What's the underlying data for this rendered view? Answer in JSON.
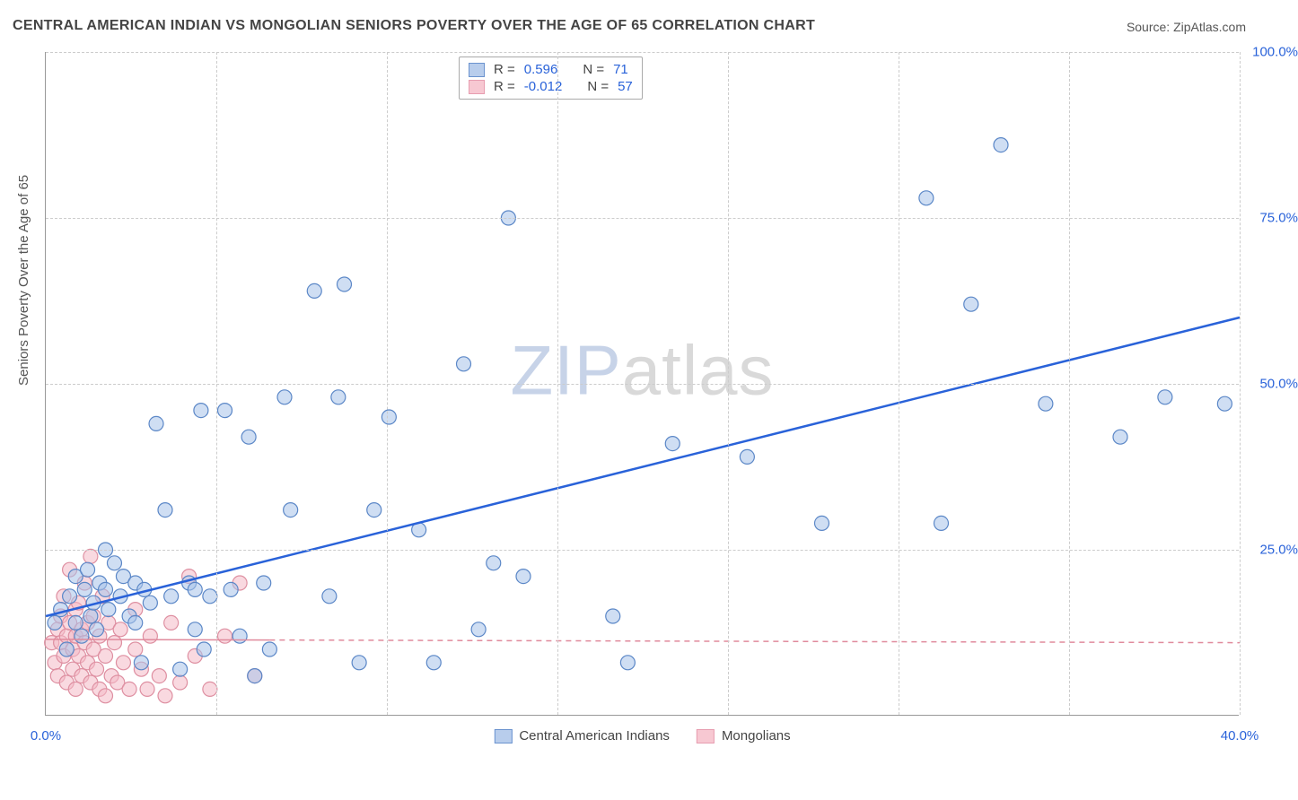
{
  "title": "CENTRAL AMERICAN INDIAN VS MONGOLIAN SENIORS POVERTY OVER THE AGE OF 65 CORRELATION CHART",
  "source_label": "Source: ",
  "source_name": "ZipAtlas.com",
  "watermark": {
    "a": "ZIP",
    "b": "atlas"
  },
  "chart": {
    "type": "scatter",
    "xlim": [
      0,
      40
    ],
    "ylim": [
      0,
      100
    ],
    "xtick_labels": [
      "0.0%",
      "40.0%"
    ],
    "xtick_positions": [
      0,
      40
    ],
    "xgrid_positions": [
      0,
      5.71,
      11.43,
      17.14,
      22.86,
      28.57,
      34.29,
      40
    ],
    "ytick_labels": [
      "25.0%",
      "50.0%",
      "75.0%",
      "100.0%"
    ],
    "ytick_positions": [
      25,
      50,
      75,
      100
    ],
    "ylabel": "Seniors Poverty Over the Age of 65",
    "background_color": "#ffffff",
    "grid_color": "#cccccc",
    "axis_color": "#999999",
    "tick_label_color": "#2962d9",
    "marker_radius": 8,
    "marker_opacity": 0.55,
    "series": [
      {
        "name": "Central American Indians",
        "color_fill": "#a7c3ea",
        "color_stroke": "#5b87c7",
        "swatch_fill": "#b8cdec",
        "swatch_stroke": "#6b93cf",
        "R": "0.596",
        "N": "71",
        "trend": {
          "x1": 0,
          "y1": 15,
          "x2": 40,
          "y2": 60,
          "color": "#2962d9",
          "width": 2.5,
          "dash": ""
        },
        "points": [
          [
            0.3,
            14
          ],
          [
            0.5,
            16
          ],
          [
            0.7,
            10
          ],
          [
            0.8,
            18
          ],
          [
            1.0,
            21
          ],
          [
            1.0,
            14
          ],
          [
            1.2,
            12
          ],
          [
            1.3,
            19
          ],
          [
            1.4,
            22
          ],
          [
            1.5,
            15
          ],
          [
            1.6,
            17
          ],
          [
            1.7,
            13
          ],
          [
            1.8,
            20
          ],
          [
            2.0,
            19
          ],
          [
            2.0,
            25
          ],
          [
            2.1,
            16
          ],
          [
            2.3,
            23
          ],
          [
            2.5,
            18
          ],
          [
            2.6,
            21
          ],
          [
            2.8,
            15
          ],
          [
            3.0,
            20
          ],
          [
            3.0,
            14
          ],
          [
            3.2,
            8
          ],
          [
            3.3,
            19
          ],
          [
            3.5,
            17
          ],
          [
            3.7,
            44
          ],
          [
            4.0,
            31
          ],
          [
            4.2,
            18
          ],
          [
            4.5,
            7
          ],
          [
            4.8,
            20
          ],
          [
            5.0,
            13
          ],
          [
            5.0,
            19
          ],
          [
            5.2,
            46
          ],
          [
            5.3,
            10
          ],
          [
            5.5,
            18
          ],
          [
            6.0,
            46
          ],
          [
            6.2,
            19
          ],
          [
            6.5,
            12
          ],
          [
            6.8,
            42
          ],
          [
            7.0,
            6
          ],
          [
            7.3,
            20
          ],
          [
            7.5,
            10
          ],
          [
            8.0,
            48
          ],
          [
            8.2,
            31
          ],
          [
            9.0,
            64
          ],
          [
            9.5,
            18
          ],
          [
            9.8,
            48
          ],
          [
            10.0,
            65
          ],
          [
            10.5,
            8
          ],
          [
            11.0,
            31
          ],
          [
            11.5,
            45
          ],
          [
            12.5,
            28
          ],
          [
            13.0,
            8
          ],
          [
            14.0,
            53
          ],
          [
            14.5,
            13
          ],
          [
            15.0,
            23
          ],
          [
            15.5,
            75
          ],
          [
            16.0,
            21
          ],
          [
            19.0,
            15
          ],
          [
            19.5,
            8
          ],
          [
            21.0,
            41
          ],
          [
            23.5,
            39
          ],
          [
            26.0,
            29
          ],
          [
            29.5,
            78
          ],
          [
            30.0,
            29
          ],
          [
            31.0,
            62
          ],
          [
            32.0,
            86
          ],
          [
            33.5,
            47
          ],
          [
            36.0,
            42
          ],
          [
            37.5,
            48
          ],
          [
            39.5,
            47
          ]
        ]
      },
      {
        "name": "Mongolians",
        "color_fill": "#f4b9c6",
        "color_stroke": "#de8fa1",
        "swatch_fill": "#f7c8d2",
        "swatch_stroke": "#e79db0",
        "R": "-0.012",
        "N": "57",
        "trend": {
          "x1": 0,
          "y1": 11.5,
          "x2": 40,
          "y2": 11,
          "color": "#e08a9c",
          "width": 1.5,
          "dash": "6 5"
        },
        "trend_solid_until_x": 7.5,
        "points": [
          [
            0.2,
            11
          ],
          [
            0.3,
            8
          ],
          [
            0.4,
            13
          ],
          [
            0.4,
            6
          ],
          [
            0.5,
            11
          ],
          [
            0.5,
            15
          ],
          [
            0.6,
            9
          ],
          [
            0.6,
            18
          ],
          [
            0.7,
            12
          ],
          [
            0.7,
            5
          ],
          [
            0.8,
            14
          ],
          [
            0.8,
            22
          ],
          [
            0.9,
            10
          ],
          [
            0.9,
            7
          ],
          [
            1.0,
            16
          ],
          [
            1.0,
            4
          ],
          [
            1.0,
            12
          ],
          [
            1.1,
            9
          ],
          [
            1.1,
            17
          ],
          [
            1.2,
            6
          ],
          [
            1.2,
            13
          ],
          [
            1.3,
            11
          ],
          [
            1.3,
            20
          ],
          [
            1.4,
            8
          ],
          [
            1.4,
            14
          ],
          [
            1.5,
            5
          ],
          [
            1.5,
            24
          ],
          [
            1.6,
            10
          ],
          [
            1.6,
            15
          ],
          [
            1.7,
            7
          ],
          [
            1.8,
            12
          ],
          [
            1.8,
            4
          ],
          [
            1.9,
            18
          ],
          [
            2.0,
            9
          ],
          [
            2.0,
            3
          ],
          [
            2.1,
            14
          ],
          [
            2.2,
            6
          ],
          [
            2.3,
            11
          ],
          [
            2.4,
            5
          ],
          [
            2.5,
            13
          ],
          [
            2.6,
            8
          ],
          [
            2.8,
            4
          ],
          [
            3.0,
            10
          ],
          [
            3.0,
            16
          ],
          [
            3.2,
            7
          ],
          [
            3.4,
            4
          ],
          [
            3.5,
            12
          ],
          [
            3.8,
            6
          ],
          [
            4.0,
            3
          ],
          [
            4.2,
            14
          ],
          [
            4.5,
            5
          ],
          [
            4.8,
            21
          ],
          [
            5.0,
            9
          ],
          [
            5.5,
            4
          ],
          [
            6.0,
            12
          ],
          [
            6.5,
            20
          ],
          [
            7.0,
            6
          ]
        ]
      }
    ],
    "legend_stats": {
      "R_label": "R  =",
      "N_label": "N  ="
    },
    "legend_bottom": {
      "items": [
        "Central American Indians",
        "Mongolians"
      ]
    }
  }
}
